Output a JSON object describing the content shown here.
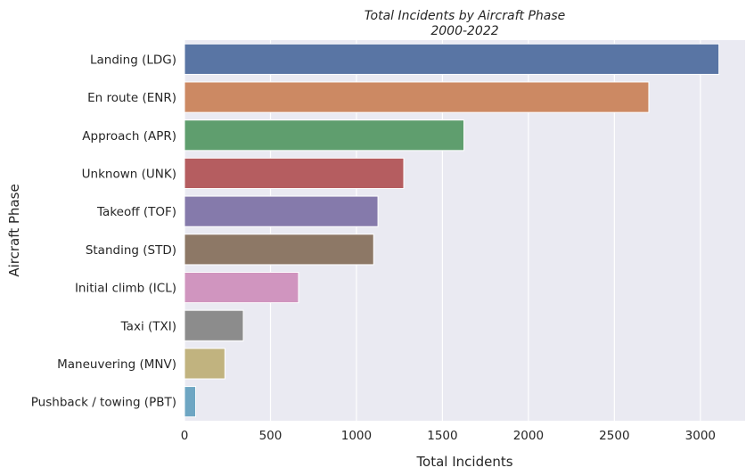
{
  "chart_data": {
    "type": "bar",
    "orientation": "horizontal",
    "title": "Total Incidents by Aircraft Phase",
    "subtitle": "2000-2022",
    "xlabel": "Total Incidents",
    "ylabel": "Aircraft Phase",
    "xlim": [
      0,
      3260
    ],
    "xticks": [
      0,
      500,
      1000,
      1500,
      2000,
      2500,
      3000
    ],
    "grid": true,
    "legend": "none",
    "categories": [
      "Landing (LDG)",
      "En route (ENR)",
      "Approach (APR)",
      "Unknown (UNK)",
      "Takeoff (TOF)",
      "Standing (STD)",
      "Initial climb (ICL)",
      "Taxi (TXI)",
      "Maneuvering (MNV)",
      "Pushback / towing (PBT)"
    ],
    "values": [
      3108,
      2700,
      1625,
      1275,
      1125,
      1100,
      663,
      342,
      235,
      65
    ],
    "colors": [
      "#5975a4",
      "#cc8963",
      "#5f9e6e",
      "#b55d60",
      "#857aab",
      "#8d7866",
      "#d095bf",
      "#8c8c8c",
      "#c1b37f",
      "#6ea6c3"
    ],
    "background": "#eaeaf2"
  }
}
